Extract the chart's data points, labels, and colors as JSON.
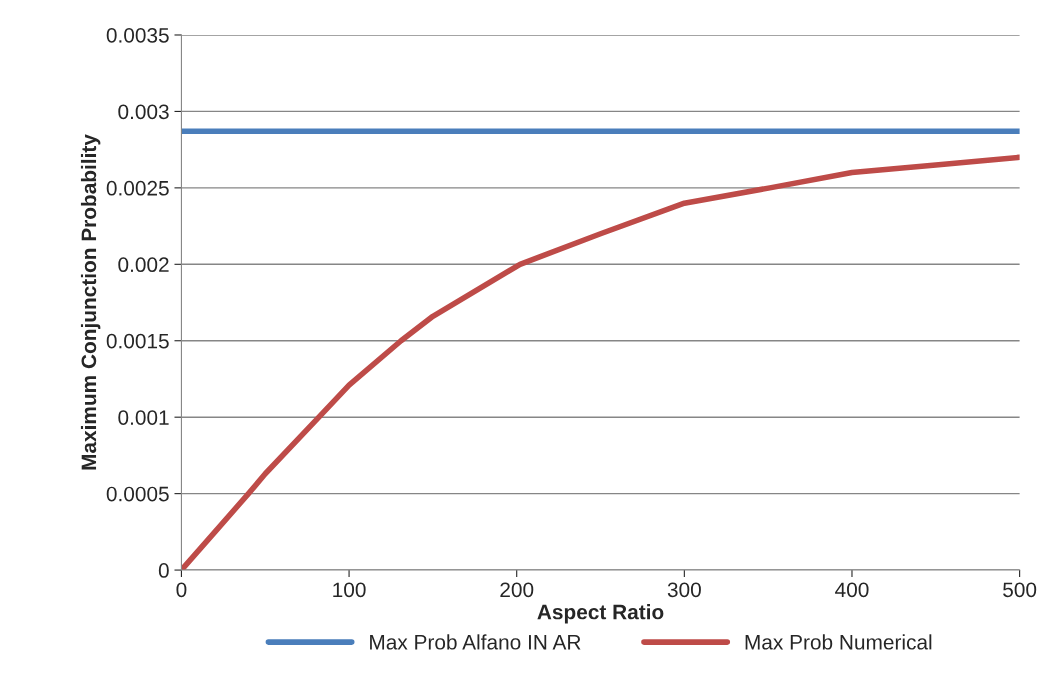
{
  "chart_data": {
    "type": "line",
    "xlabel": "Aspect Ratio",
    "ylabel": "Maximum Conjunction Probability",
    "xlim": [
      0,
      500
    ],
    "xticks": [
      0,
      100,
      200,
      300,
      400,
      500
    ],
    "ylim": [
      0,
      0.0035
    ],
    "yticks": [
      {
        "value": 0,
        "label": "0"
      },
      {
        "value": 0.0005,
        "label": "0.0005"
      },
      {
        "value": 0.001,
        "label": "0.001"
      },
      {
        "value": 0.0015,
        "label": "0.0015"
      },
      {
        "value": 0.002,
        "label": "0.002"
      },
      {
        "value": 0.0025,
        "label": "0.0025"
      },
      {
        "value": 0.003,
        "label": "0.003"
      },
      {
        "value": 0.0035,
        "label": "0.0035"
      }
    ],
    "grid": "y",
    "legend": "bottom",
    "marker": "none",
    "line_style": "solid",
    "series": [
      {
        "name": "Max Prob Alfano IN AR",
        "color": "#4a7ebb",
        "x": [
          0,
          500
        ],
        "values": [
          0.00287,
          0.00287
        ]
      },
      {
        "name": "Max Prob Numerical",
        "color": "#be4b48",
        "x": [
          0,
          20,
          40,
          50,
          82,
          100,
          131,
          150,
          202,
          250,
          300,
          351,
          400,
          450,
          500
        ],
        "values": [
          0,
          0.00025,
          0.0005,
          0.00063,
          0.001,
          0.00121,
          0.0015,
          0.00166,
          0.002,
          0.0022,
          0.0024,
          0.0025,
          0.0026,
          0.00265,
          0.0027
        ]
      }
    ]
  }
}
